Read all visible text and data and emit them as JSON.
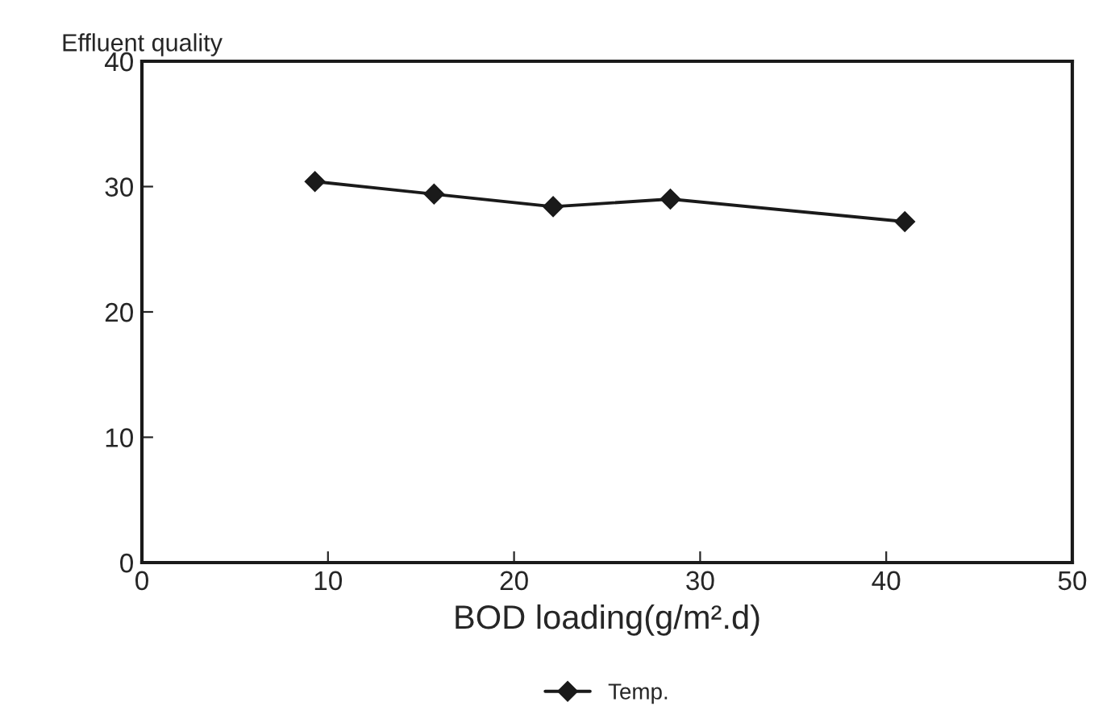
{
  "chart_data": {
    "type": "line",
    "ylabel": "Effluent quality",
    "xlabel": "BOD loading(g/m².d)",
    "series": [
      {
        "name": "Temp.",
        "color": "#1a1a1a",
        "x": [
          9.3,
          15.7,
          22.1,
          28.4,
          41.0
        ],
        "values": [
          30.4,
          29.4,
          28.4,
          29.0,
          27.2
        ]
      }
    ],
    "xlim": [
      0,
      50
    ],
    "xticks": [
      0,
      10,
      20,
      30,
      40,
      50
    ],
    "ylim": [
      0,
      40
    ],
    "yticks": [
      0,
      10,
      20,
      30,
      40
    ],
    "grid": false,
    "legend": "bottom",
    "marker": "diamond",
    "line_style": "solid"
  }
}
